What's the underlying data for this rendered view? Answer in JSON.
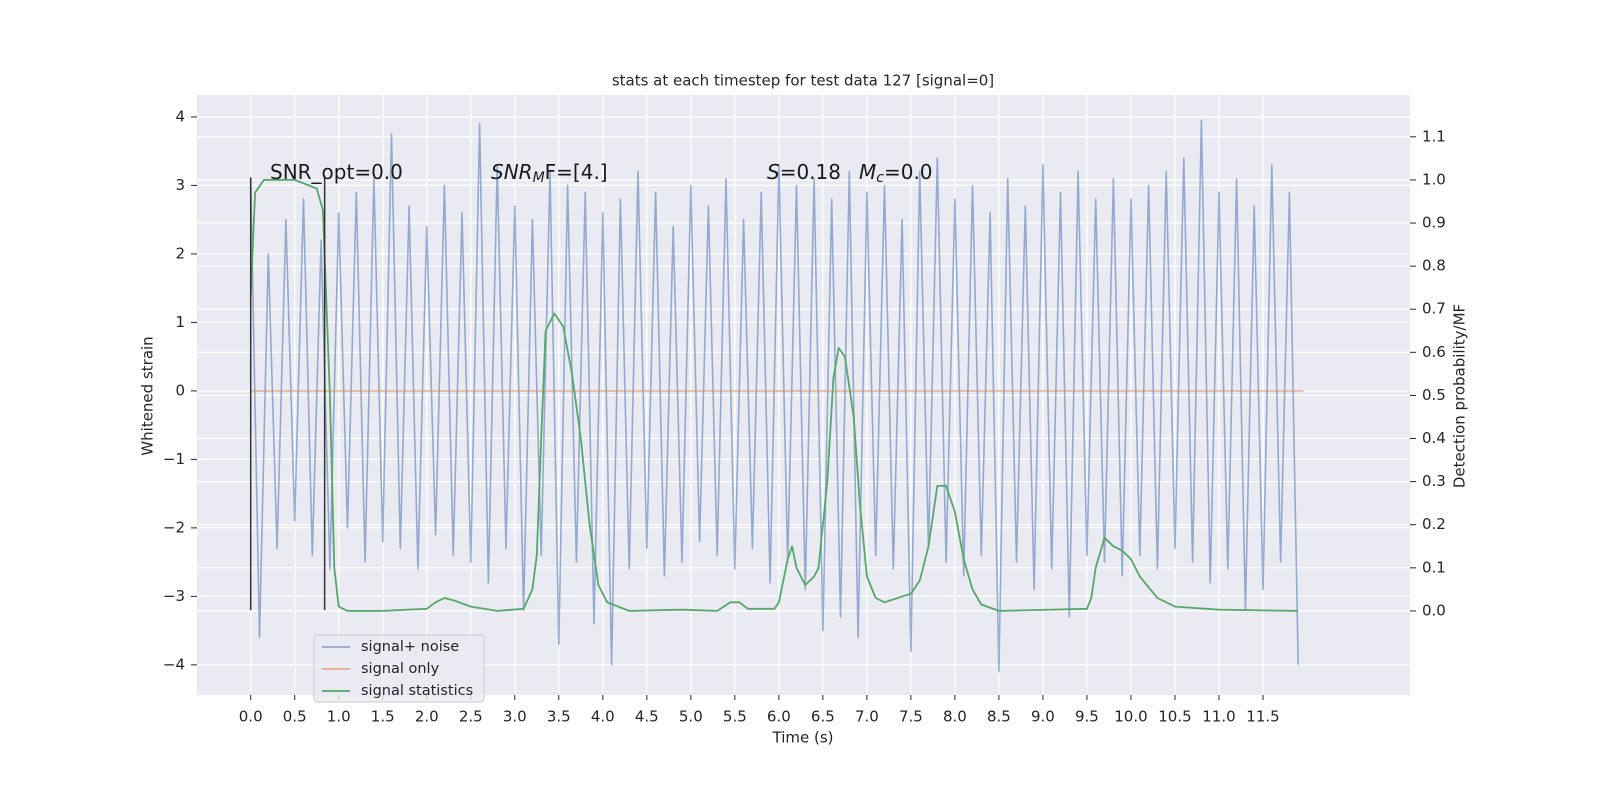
{
  "chart_data": {
    "type": "line",
    "title": "stats at each timestep for test data 127 [signal=0]",
    "xlabel": "Time (s)",
    "ylabel": "Whitened strain",
    "y2label": "Detection probability/MF",
    "grid": true,
    "legend": "lower left",
    "xlim": [
      -0.61,
      13.17
    ],
    "ylim": [
      -4.44,
      4.32
    ],
    "y2lim": [
      -0.195,
      1.197
    ],
    "xticks": [
      {
        "value": 0,
        "label": "0.0"
      },
      {
        "value": 0.5,
        "label": "0.5"
      },
      {
        "value": 1,
        "label": "1.0"
      },
      {
        "value": 1.5,
        "label": "1.5"
      },
      {
        "value": 2,
        "label": "2.0"
      },
      {
        "value": 2.5,
        "label": "2.5"
      },
      {
        "value": 3,
        "label": "3.0"
      },
      {
        "value": 3.5,
        "label": "3.5"
      },
      {
        "value": 4,
        "label": "4.0"
      },
      {
        "value": 4.5,
        "label": "4.5"
      },
      {
        "value": 5,
        "label": "5.0"
      },
      {
        "value": 5.5,
        "label": "5.5"
      },
      {
        "value": 6,
        "label": "6.0"
      },
      {
        "value": 6.5,
        "label": "6.5"
      },
      {
        "value": 7,
        "label": "7.0"
      },
      {
        "value": 7.5,
        "label": "7.5"
      },
      {
        "value": 8,
        "label": "8.0"
      },
      {
        "value": 8.5,
        "label": "8.5"
      },
      {
        "value": 9,
        "label": "9.0"
      },
      {
        "value": 9.5,
        "label": "9.5"
      },
      {
        "value": 10,
        "label": "10.0"
      },
      {
        "value": 10.5,
        "label": "10.5"
      },
      {
        "value": 11,
        "label": "11.0"
      },
      {
        "value": 11.5,
        "label": "11.5"
      }
    ],
    "yticks": [
      {
        "value": -4,
        "label": "−4"
      },
      {
        "value": -3,
        "label": "−3"
      },
      {
        "value": -2,
        "label": "−2"
      },
      {
        "value": -1,
        "label": "−1"
      },
      0,
      1,
      2,
      3,
      4
    ],
    "y2ticks": [
      {
        "value": 0,
        "label": "0.0"
      },
      {
        "value": 0.1,
        "label": "0.1"
      },
      {
        "value": 0.2,
        "label": "0.2"
      },
      {
        "value": 0.3,
        "label": "0.3"
      },
      {
        "value": 0.4,
        "label": "0.4"
      },
      {
        "value": 0.5,
        "label": "0.5"
      },
      {
        "value": 0.6,
        "label": "0.6"
      },
      {
        "value": 0.7,
        "label": "0.7"
      },
      {
        "value": 0.8,
        "label": "0.8"
      },
      {
        "value": 0.9,
        "label": "0.9"
      },
      {
        "value": 1,
        "label": "1.0"
      },
      {
        "value": 1.1,
        "label": "1.1"
      }
    ],
    "annotations": [
      {
        "text": "SNR_opt=0.0"
      },
      {
        "base": "SNR",
        "sub": "M",
        "rest": "F=[4.]"
      },
      {
        "base": "S",
        "rest": "=0.18"
      },
      {
        "base": "M",
        "sub": "c",
        "rest": "=0.0"
      }
    ],
    "vlines": {
      "color": "#333333",
      "x": [
        0,
        0.84
      ],
      "ymin": -3.2,
      "ymax": 3.12
    },
    "series": [
      {
        "name": "signal+ noise",
        "color": "#4c72b0",
        "x": [
          0,
          0.1,
          0.2,
          0.3,
          0.4,
          0.5,
          0.6,
          0.7,
          0.8,
          0.9,
          1,
          1.1,
          1.2,
          1.3,
          1.4,
          1.5,
          1.6,
          1.7,
          1.8,
          1.9,
          2,
          2.1,
          2.2,
          2.3,
          2.4,
          2.5,
          2.6,
          2.7,
          2.8,
          2.9,
          3,
          3.1,
          3.2,
          3.3,
          3.4,
          3.5,
          3.6,
          3.7,
          3.8,
          3.9,
          4,
          4.1,
          4.2,
          4.3,
          4.4,
          4.5,
          4.6,
          4.7,
          4.8,
          4.9,
          5,
          5.1,
          5.2,
          5.3,
          5.4,
          5.5,
          5.6,
          5.7,
          5.8,
          5.9,
          6,
          6.1,
          6.2,
          6.3,
          6.4,
          6.5,
          6.6,
          6.7,
          6.8,
          6.9,
          7,
          7.1,
          7.2,
          7.3,
          7.4,
          7.5,
          7.6,
          7.7,
          7.8,
          7.9,
          8,
          8.1,
          8.2,
          8.3,
          8.4,
          8.5,
          8.6,
          8.7,
          8.8,
          8.9,
          9,
          9.1,
          9.2,
          9.3,
          9.4,
          9.5,
          9.6,
          9.7,
          9.8,
          9.9,
          10,
          10.1,
          10.2,
          10.3,
          10.4,
          10.5,
          10.6,
          10.7,
          10.8,
          10.9,
          11,
          11.1,
          11.2,
          11.3,
          11.4,
          11.5,
          11.6,
          11.7,
          11.8,
          11.9
        ],
        "values": [
          3.1,
          -3.6,
          2.0,
          -2.3,
          2.5,
          -1.9,
          2.8,
          -2.4,
          2.2,
          -2.6,
          2.6,
          -2.0,
          2.9,
          -2.5,
          3.1,
          -2.2,
          3.75,
          -2.3,
          2.7,
          -2.6,
          2.4,
          -2.1,
          3.0,
          -2.4,
          2.6,
          -2.5,
          3.9,
          -2.8,
          3.3,
          -2.3,
          2.7,
          -3.2,
          2.5,
          -2.4,
          3.2,
          -3.7,
          3.0,
          -2.5,
          2.9,
          -3.4,
          2.6,
          -4.0,
          2.8,
          -2.6,
          3.2,
          -2.3,
          2.9,
          -2.7,
          2.4,
          -2.5,
          3.0,
          -2.2,
          2.7,
          -2.4,
          3.1,
          -2.6,
          2.5,
          -2.3,
          2.9,
          -2.8,
          3.3,
          -2.5,
          3.0,
          -2.9,
          3.1,
          -3.5,
          2.8,
          -3.3,
          3.2,
          -3.6,
          2.9,
          -2.4,
          3.0,
          -2.6,
          2.5,
          -3.8,
          3.2,
          -2.3,
          3.4,
          -2.5,
          2.8,
          -2.7,
          3.0,
          -2.4,
          2.6,
          -4.1,
          3.1,
          -2.5,
          2.7,
          -2.9,
          3.3,
          -2.6,
          2.9,
          -3.3,
          3.2,
          -2.4,
          2.8,
          -2.5,
          3.1,
          -2.7,
          2.8,
          -2.4,
          3.0,
          -2.6,
          3.2,
          -2.3,
          3.4,
          -2.5,
          3.95,
          -2.8,
          2.9,
          -2.6,
          3.1,
          -3.2,
          2.7,
          -2.9,
          3.3,
          -2.5,
          2.9,
          -4.0
        ]
      },
      {
        "name": "signal only",
        "color": "#dd8452",
        "x": [
          0,
          11.96
        ],
        "values": [
          0,
          0
        ]
      },
      {
        "name": "signal statistics",
        "color": "#55a868",
        "axis": "y2",
        "x": [
          0,
          0.05,
          0.15,
          0.5,
          0.75,
          0.82,
          0.9,
          0.95,
          1.0,
          1.1,
          1.5,
          2.0,
          2.1,
          2.2,
          2.3,
          2.5,
          2.8,
          3.1,
          3.2,
          3.25,
          3.3,
          3.35,
          3.45,
          3.55,
          3.65,
          3.75,
          3.85,
          3.95,
          4.05,
          4.3,
          4.9,
          5.3,
          5.45,
          5.55,
          5.65,
          5.95,
          6.0,
          6.1,
          6.15,
          6.2,
          6.3,
          6.4,
          6.45,
          6.55,
          6.62,
          6.68,
          6.75,
          6.85,
          6.92,
          7.0,
          7.1,
          7.2,
          7.5,
          7.6,
          7.7,
          7.8,
          7.9,
          8.0,
          8.1,
          8.2,
          8.3,
          8.5,
          9.5,
          9.55,
          9.6,
          9.7,
          9.8,
          9.9,
          10.0,
          10.1,
          10.3,
          10.5,
          11.0,
          11.9
        ],
        "values": [
          0.73,
          0.97,
          1.0,
          1.0,
          0.98,
          0.93,
          0.5,
          0.1,
          0.01,
          0.0,
          0.0,
          0.005,
          0.02,
          0.03,
          0.025,
          0.01,
          0.0,
          0.005,
          0.05,
          0.13,
          0.4,
          0.65,
          0.69,
          0.66,
          0.55,
          0.4,
          0.2,
          0.06,
          0.02,
          0.0,
          0.003,
          0.0,
          0.02,
          0.02,
          0.005,
          0.005,
          0.02,
          0.12,
          0.15,
          0.1,
          0.06,
          0.08,
          0.1,
          0.3,
          0.54,
          0.61,
          0.59,
          0.45,
          0.25,
          0.08,
          0.03,
          0.02,
          0.04,
          0.07,
          0.15,
          0.29,
          0.29,
          0.23,
          0.12,
          0.05,
          0.015,
          0.0,
          0.005,
          0.03,
          0.1,
          0.17,
          0.15,
          0.14,
          0.12,
          0.08,
          0.03,
          0.01,
          0.003,
          0.0
        ]
      }
    ]
  }
}
